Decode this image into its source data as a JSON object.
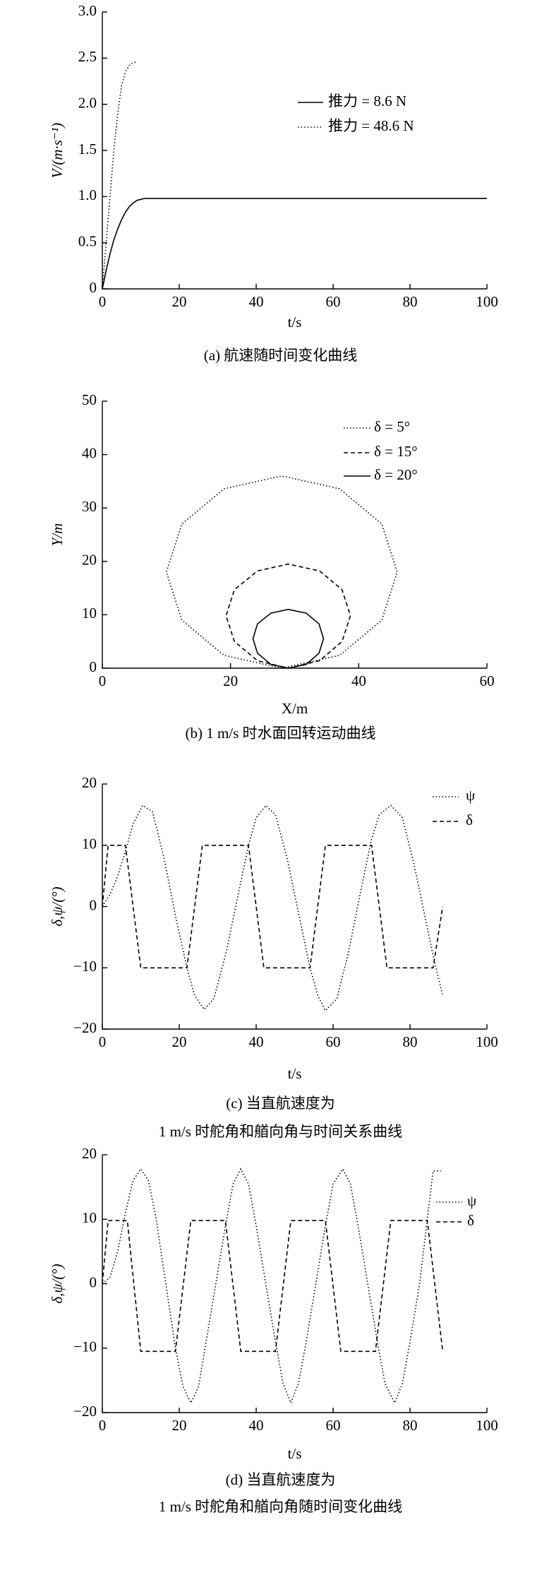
{
  "chart_data": [
    {
      "type": "line",
      "y_label": "V/(m·s⁻¹)",
      "x_label": "t/s",
      "caption": [
        "(a) 航速随时间变化曲线"
      ],
      "xlim": [
        0,
        100
      ],
      "xticks": [
        0,
        20,
        40,
        60,
        80,
        100
      ],
      "ylim": [
        0,
        3
      ],
      "yticks": [
        0,
        0.5,
        {
          "value": 1,
          "label": "1.0"
        },
        1.5,
        {
          "value": 2,
          "label": "2.0"
        },
        2.5,
        {
          "value": 3,
          "label": "3.0"
        }
      ],
      "series": [
        {
          "name": "推力 = 8.6 N",
          "color": "#000",
          "style": "solid",
          "x": [
            0,
            1,
            2,
            3,
            4,
            5,
            6,
            7,
            8,
            9,
            10,
            11,
            12,
            20,
            40,
            60,
            80,
            100
          ],
          "values": [
            0,
            0.2,
            0.38,
            0.53,
            0.65,
            0.75,
            0.83,
            0.89,
            0.93,
            0.96,
            0.97,
            0.98,
            0.98,
            0.98,
            0.98,
            0.98,
            0.98,
            0.98
          ]
        },
        {
          "name": "推力 = 48.6 N",
          "color": "#000",
          "style": "dotted",
          "x": [
            0,
            1,
            2,
            3,
            4,
            5,
            6,
            7,
            8,
            9
          ],
          "values": [
            0,
            0.5,
            1.0,
            1.5,
            1.9,
            2.2,
            2.35,
            2.42,
            2.45,
            2.46
          ]
        }
      ]
    },
    {
      "type": "line",
      "y_label": "Y/m",
      "x_label": "X/m",
      "caption": [
        "(b) 1 m/s 时水面回转运动曲线"
      ],
      "xlim": [
        0,
        60
      ],
      "xticks": [
        0,
        20,
        40,
        60
      ],
      "ylim": [
        0,
        50
      ],
      "yticks": [
        0,
        10,
        20,
        30,
        40,
        50
      ],
      "series": [
        {
          "name": "δ = 5°",
          "color": "#000",
          "style": "dotted",
          "x": [
            28,
            37,
            43.6,
            46,
            43.6,
            37,
            28,
            19,
            12.4,
            10,
            12.4,
            19,
            28
          ],
          "values": [
            0,
            2.4,
            9,
            18,
            27,
            33.6,
            36,
            33.6,
            27,
            18,
            9,
            2.4,
            0
          ]
        },
        {
          "name": "δ = 15°",
          "color": "#000",
          "style": "dashed",
          "x": [
            29,
            33.9,
            37.4,
            38.7,
            37.4,
            33.9,
            29,
            24.2,
            20.6,
            19.3,
            20.6,
            24.2,
            29
          ],
          "values": [
            0,
            1.4,
            5,
            9.8,
            14.7,
            18.2,
            19.5,
            18.2,
            14.7,
            9.8,
            5,
            1.4,
            0
          ]
        },
        {
          "name": "δ = 20°",
          "color": "#000",
          "style": "solid",
          "x": [
            29,
            31.8,
            33.8,
            34.5,
            33.8,
            31.8,
            29,
            26.3,
            24.2,
            23.5,
            24.2,
            26.3,
            29
          ],
          "values": [
            0,
            0.7,
            2.8,
            5.5,
            8.3,
            10.3,
            11,
            10.3,
            8.3,
            5.5,
            2.8,
            0.7,
            0
          ]
        }
      ]
    },
    {
      "type": "line",
      "y_label": "δ,ψ/(°)",
      "x_label": "t/s",
      "caption": [
        "(c) 当直航速度为",
        "1 m/s 时舵角和艏向角与时间关系曲线"
      ],
      "xlim": [
        0,
        100
      ],
      "xticks": [
        0,
        20,
        40,
        60,
        80,
        100
      ],
      "ylim": [
        -20,
        20
      ],
      "yticks": [
        {
          "value": -20,
          "label": "−20"
        },
        {
          "value": -10,
          "label": "−10"
        },
        0,
        10,
        20
      ],
      "series": [
        {
          "name": "ψ",
          "color": "#000",
          "style": "dotted",
          "x": [
            0,
            2,
            4,
            6,
            8,
            10.5,
            13,
            16,
            19,
            22,
            24,
            26.5,
            29,
            32,
            35,
            38,
            40,
            42.5,
            45,
            48,
            51,
            54,
            56,
            58,
            61,
            64,
            67,
            70,
            72,
            75,
            78,
            81,
            84,
            86,
            88.5
          ],
          "values": [
            0,
            2,
            5,
            9,
            13.5,
            16.5,
            15.5,
            8,
            -1.5,
            -10,
            -14.5,
            -16.8,
            -15,
            -8,
            1,
            10,
            14.5,
            16.5,
            15,
            8,
            -1,
            -10,
            -14.5,
            -17,
            -15,
            -7.5,
            2,
            11,
            15,
            16.5,
            14.5,
            7,
            -2,
            -8,
            -14.5
          ]
        },
        {
          "name": "δ",
          "color": "#000",
          "style": "dashed",
          "x": [
            0,
            1.5,
            6,
            10,
            22,
            26,
            38,
            42,
            54,
            58,
            70,
            74,
            86,
            88.5
          ],
          "values": [
            0,
            10,
            10,
            -10,
            -10,
            10,
            10,
            -10,
            -10,
            10,
            10,
            -10,
            -10,
            0
          ]
        }
      ]
    },
    {
      "type": "line",
      "y_label": "δ,ψ/(°)",
      "x_label": "t/s",
      "caption": [
        "(d) 当直航速度为",
        "1 m/s 时舵角和艏向角随时间变化曲线"
      ],
      "xlim": [
        0,
        100
      ],
      "xticks": [
        0,
        20,
        40,
        60,
        80,
        100
      ],
      "ylim": [
        -20,
        20
      ],
      "yticks": [
        {
          "value": -20,
          "label": "−20"
        },
        {
          "value": -10,
          "label": "−10"
        },
        0,
        10,
        20
      ],
      "series": [
        {
          "name": "ψ",
          "color": "#000",
          "style": "dotted",
          "x": [
            0,
            2,
            4,
            6,
            8,
            10,
            12,
            14,
            16.5,
            19,
            21,
            23,
            25,
            27,
            29.5,
            32,
            34,
            36,
            38,
            40,
            42.5,
            45,
            47,
            49,
            51,
            53,
            55.5,
            58,
            60,
            62.5,
            64.5,
            66.5,
            69,
            71.5,
            73.5,
            76,
            78,
            80,
            82.5,
            84.5,
            86,
            88
          ],
          "values": [
            0,
            1,
            5,
            11,
            16,
            17.8,
            16,
            10,
            0,
            -10,
            -16,
            -18.5,
            -16,
            -9,
            0,
            9,
            15.5,
            17.8,
            15.5,
            9,
            0,
            -9,
            -15.5,
            -18.5,
            -15.5,
            -9,
            0,
            9,
            15.5,
            17.8,
            15.5,
            9,
            0,
            -9,
            -15.5,
            -18.5,
            -15.5,
            -9,
            0,
            10,
            17.5,
            17.5
          ]
        },
        {
          "name": "δ",
          "color": "#000",
          "style": "dashed",
          "x": [
            0,
            1.5,
            6.5,
            10,
            19,
            23,
            32,
            36,
            45,
            49,
            58,
            62,
            71,
            75,
            84.5,
            88.5
          ],
          "values": [
            0,
            9.8,
            9.8,
            -10.5,
            -10.5,
            9.8,
            9.8,
            -10.5,
            -10.5,
            9.8,
            9.8,
            -10.5,
            -10.5,
            9.8,
            9.8,
            -10.5
          ]
        }
      ]
    }
  ]
}
